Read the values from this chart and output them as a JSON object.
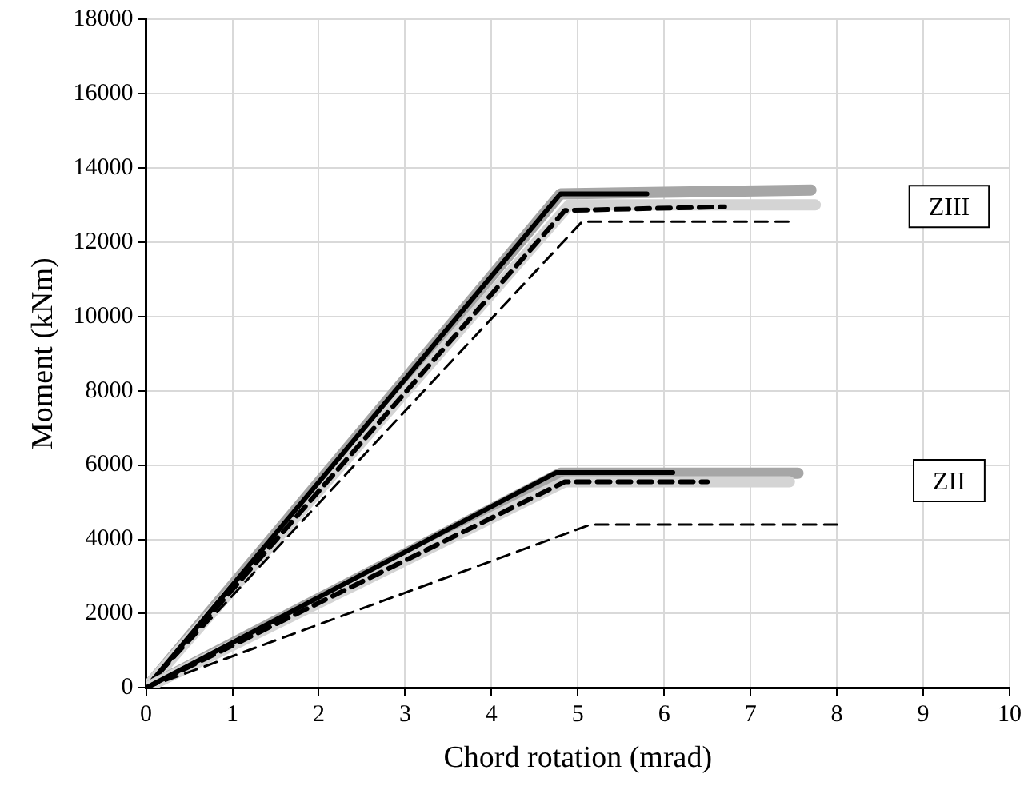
{
  "chart_data": {
    "type": "line",
    "xlabel": "Chord rotation (mrad)",
    "ylabel": "Moment (kNm)",
    "xlim": [
      0,
      10
    ],
    "xticks": [
      0,
      1,
      2,
      3,
      4,
      5,
      6,
      7,
      8,
      9,
      10
    ],
    "ylim": [
      0,
      18000
    ],
    "yticks": [
      0,
      2000,
      4000,
      6000,
      8000,
      10000,
      12000,
      14000,
      16000,
      18000
    ],
    "grid": true,
    "legend": false,
    "marker": "none",
    "series": [
      {
        "color": "#a6a6a6",
        "line_style": "solid",
        "x": [
          0,
          4.8,
          7.7
        ],
        "values": [
          0,
          13300,
          13400
        ]
      },
      {
        "color": "#d4d4d4",
        "line_style": "solid",
        "x": [
          0,
          4.9,
          7.75
        ],
        "values": [
          0,
          13000,
          13000
        ]
      },
      {
        "color": "#000000",
        "line_style": "solid",
        "x": [
          0,
          4.8,
          5.8
        ],
        "values": [
          0,
          13300,
          13300
        ]
      },
      {
        "color": "#000000",
        "line_style": "dashed",
        "x": [
          0,
          4.85,
          6.7
        ],
        "values": [
          0,
          12850,
          12950
        ]
      },
      {
        "color": "#000000",
        "line_style": "dashed",
        "x": [
          0,
          5.05,
          7.45
        ],
        "values": [
          0,
          12550,
          12550
        ]
      },
      {
        "color": "#a6a6a6",
        "line_style": "solid",
        "x": [
          0,
          4.8,
          7.55
        ],
        "values": [
          0,
          5780,
          5780
        ]
      },
      {
        "color": "#d4d4d4",
        "line_style": "solid",
        "x": [
          0,
          4.85,
          7.45
        ],
        "values": [
          0,
          5550,
          5550
        ]
      },
      {
        "color": "#000000",
        "line_style": "solid",
        "x": [
          0,
          4.75,
          6.1
        ],
        "values": [
          0,
          5800,
          5800
        ]
      },
      {
        "color": "#000000",
        "line_style": "dashed",
        "x": [
          0,
          4.85,
          6.5
        ],
        "values": [
          0,
          5550,
          5550
        ]
      },
      {
        "color": "#000000",
        "line_style": "dashed",
        "x": [
          0,
          5.15,
          8.05
        ],
        "values": [
          0,
          4400,
          4400
        ]
      }
    ],
    "annotations": [
      "ZIII",
      "ZII"
    ]
  }
}
